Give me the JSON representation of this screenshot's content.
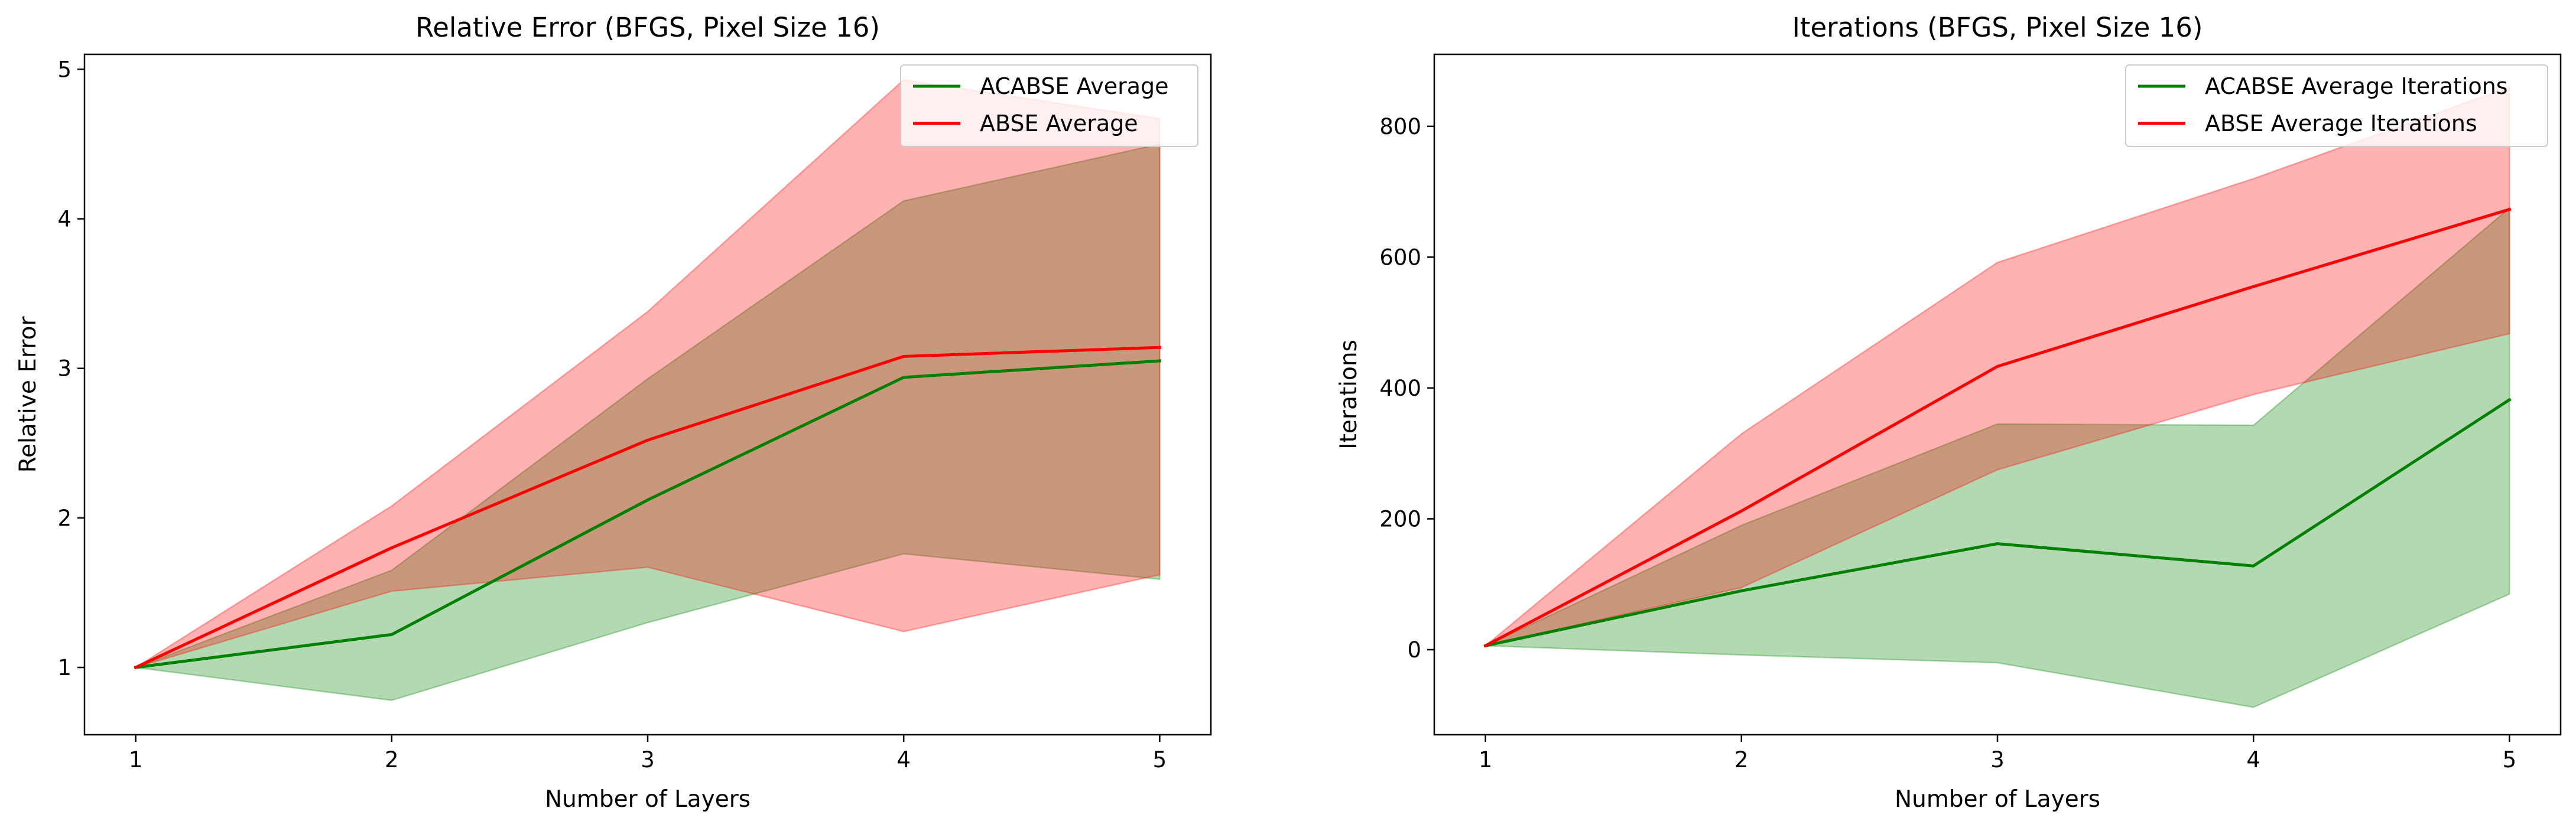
{
  "chart_data": [
    {
      "type": "line",
      "title": "Relative Error (BFGS, Pixel Size 16)",
      "xlabel": "Number of Layers",
      "ylabel": "Relative Error",
      "x": [
        1,
        2,
        3,
        4,
        5
      ],
      "xlim": [
        0.8,
        5.2
      ],
      "ylim": [
        0.55,
        5.1
      ],
      "xticks": [
        1,
        2,
        3,
        4,
        5
      ],
      "yticks": [
        1,
        2,
        3,
        4,
        5
      ],
      "grid": false,
      "legend_position": "top-right",
      "series": [
        {
          "name": "ACABSE Average",
          "color": "#008000",
          "values": [
            1.0,
            1.22,
            2.12,
            2.94,
            3.05
          ],
          "band_lower": [
            1.0,
            0.78,
            1.3,
            1.76,
            1.59
          ],
          "band_upper": [
            1.0,
            1.65,
            2.93,
            4.12,
            4.5
          ],
          "band_color": "#008000"
        },
        {
          "name": "ABSE Average",
          "color": "#ff0000",
          "values": [
            1.0,
            1.8,
            2.52,
            3.08,
            3.14
          ],
          "band_lower": [
            1.0,
            1.51,
            1.67,
            1.24,
            1.62
          ],
          "band_upper": [
            1.0,
            2.08,
            3.38,
            4.93,
            4.67
          ],
          "band_color": "#ff0000"
        }
      ]
    },
    {
      "type": "line",
      "title": "Iterations (BFGS, Pixel Size 16)",
      "xlabel": "Number of Layers",
      "ylabel": "Iterations",
      "x": [
        1,
        2,
        3,
        4,
        5
      ],
      "xlim": [
        0.8,
        5.2
      ],
      "ylim": [
        -130,
        910
      ],
      "xticks": [
        1,
        2,
        3,
        4,
        5
      ],
      "yticks": [
        0,
        200,
        400,
        600,
        800
      ],
      "grid": false,
      "legend_position": "top-right",
      "series": [
        {
          "name": "ACABSE Average Iterations",
          "color": "#008000",
          "values": [
            6,
            90,
            162,
            128,
            382
          ],
          "band_lower": [
            6,
            -8,
            -20,
            -88,
            85
          ],
          "band_upper": [
            6,
            190,
            345,
            343,
            675
          ],
          "band_color": "#008000"
        },
        {
          "name": "ABSE Average Iterations",
          "color": "#ff0000",
          "values": [
            6,
            212,
            433,
            555,
            673
          ],
          "band_lower": [
            6,
            95,
            275,
            390,
            483
          ],
          "band_upper": [
            6,
            330,
            592,
            720,
            860
          ],
          "band_color": "#ff0000"
        }
      ]
    }
  ]
}
